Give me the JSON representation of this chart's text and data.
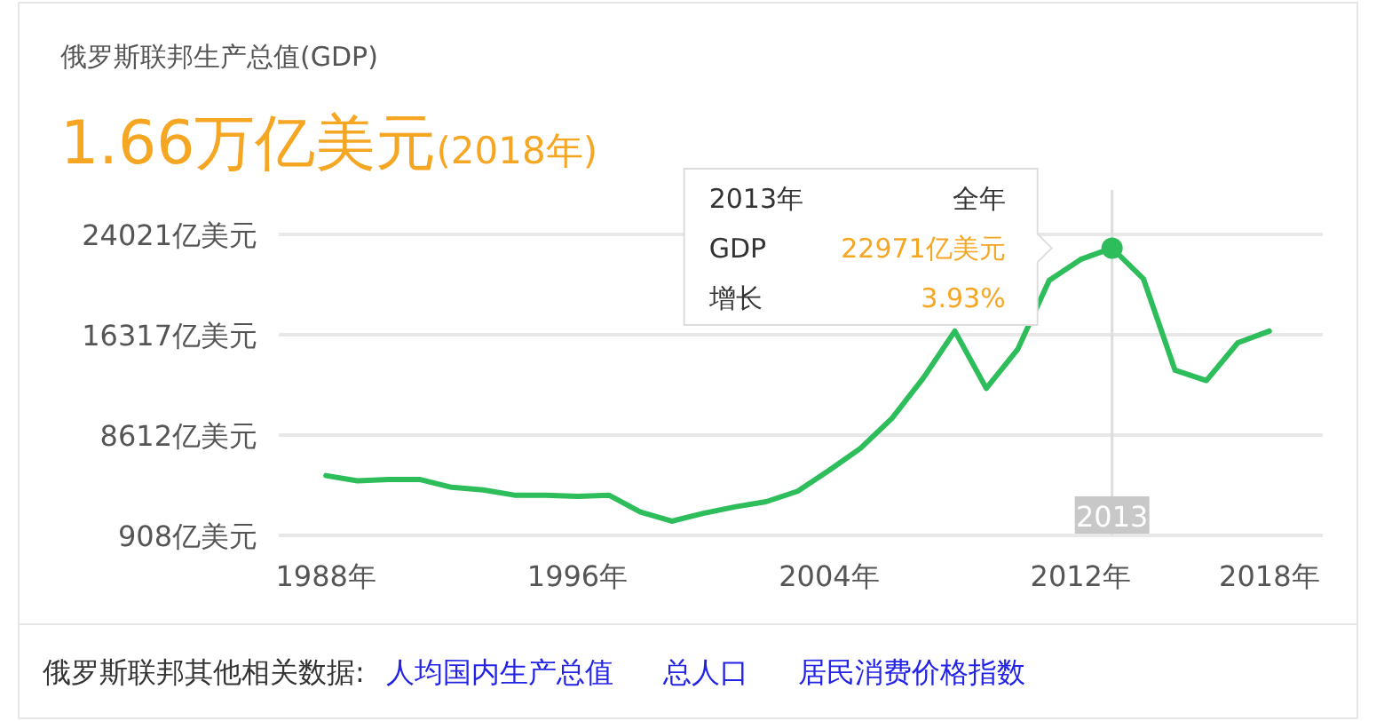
{
  "chart_data": {
    "type": "line",
    "title": "俄罗斯联邦生产总值(GDP)",
    "subtitle": "1.66万亿美元(2018年)",
    "x": [
      1988,
      1989,
      1990,
      1991,
      1992,
      1993,
      1994,
      1995,
      1996,
      1997,
      1998,
      1999,
      2000,
      2001,
      2002,
      2003,
      2004,
      2005,
      2006,
      2007,
      2008,
      2009,
      2010,
      2011,
      2012,
      2013,
      2014,
      2015,
      2016,
      2017,
      2018
    ],
    "series": [
      {
        "color": "#2dbd5a",
        "values": [
          5500,
          5100,
          5200,
          5200,
          4600,
          4400,
          4000,
          4000,
          3900,
          4000,
          2700,
          2000,
          2600,
          3100,
          3500,
          4300,
          5900,
          7600,
          9900,
          13000,
          16600,
          12200,
          15200,
          20500,
          22100,
          22971,
          20600,
          13600,
          12800,
          15700,
          16600
        ]
      }
    ],
    "xlim": [
      1986.5,
      2019.7
    ],
    "xticks": [
      {
        "value": 1988,
        "label": "1988年"
      },
      {
        "value": 1996,
        "label": "1996年"
      },
      {
        "value": 2004,
        "label": "2004年"
      },
      {
        "value": 2012,
        "label": "2012年"
      },
      {
        "value": 2018,
        "label": "2018年"
      }
    ],
    "ylim": [
      908,
      24021
    ],
    "yticks": [
      {
        "value": 908,
        "label": "908亿美元"
      },
      {
        "value": 8612,
        "label": "8612亿美元"
      },
      {
        "value": 16317,
        "label": "16317亿美元"
      },
      {
        "value": 24021,
        "label": "24021亿美元"
      }
    ],
    "grid": "y",
    "marker": "none",
    "line_style": "solid",
    "ref_lines": [
      {
        "axis": "x",
        "value": 2013,
        "label": "2013",
        "color": "#dddddd"
      }
    ],
    "annotations": [
      "2013年",
      "全年",
      "GDP",
      "22971亿美元",
      "增长",
      "3.93%",
      "俄罗斯联邦其他相关数据:",
      "人均国内生产总值",
      "总人口",
      "居民消费价格指数"
    ]
  }
}
